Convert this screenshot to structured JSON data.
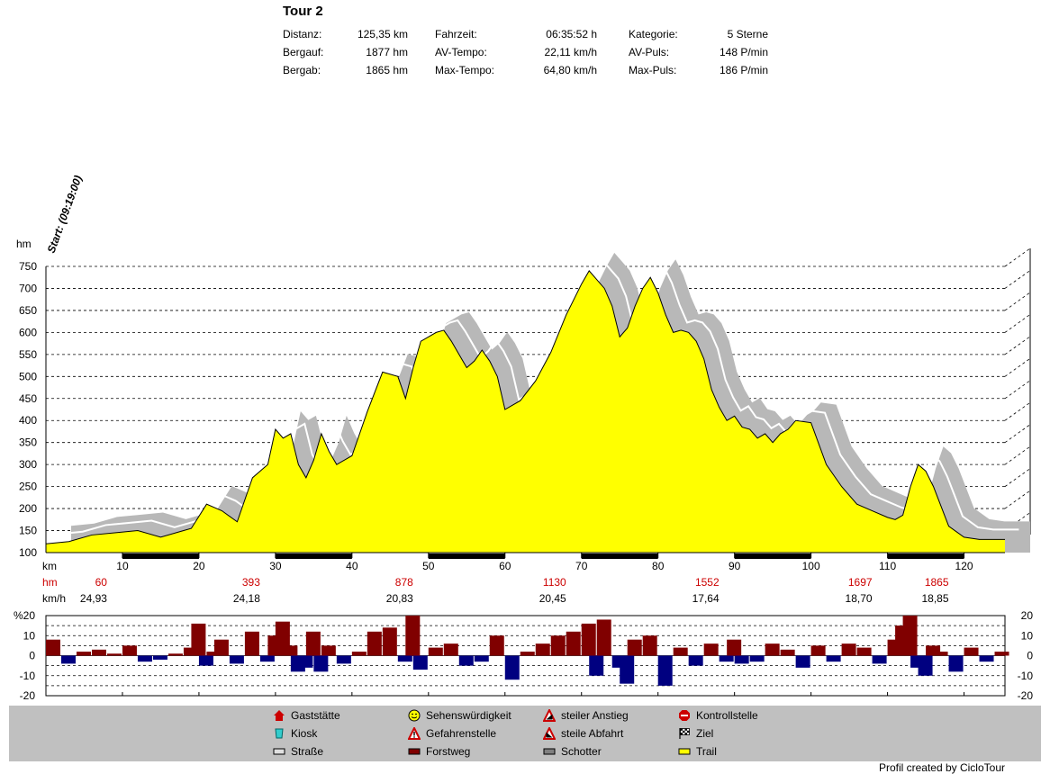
{
  "header": {
    "title": "Tour 2",
    "stats": [
      {
        "label": "Distanz:",
        "value": "125,35 km"
      },
      {
        "label": "Bergauf:",
        "value": "1877 hm"
      },
      {
        "label": "Bergab:",
        "value": "1865 hm"
      },
      {
        "label": "Fahrzeit:",
        "value": "06:35:52 h"
      },
      {
        "label": "AV-Tempo:",
        "value": "22,11 km/h"
      },
      {
        "label": "Max-Tempo:",
        "value": "64,80 km/h"
      },
      {
        "label": "Kategorie:",
        "value": "5 Sterne"
      },
      {
        "label": "AV-Puls:",
        "value": "148 P/min"
      },
      {
        "label": "Max-Puls:",
        "value": "186 P/min"
      }
    ]
  },
  "colors": {
    "trail": "#ffff00",
    "shadow": "#b8b8b8",
    "red": "#cc0000",
    "forstweg": "#800000",
    "downhill": "#000080"
  },
  "chart_data": [
    {
      "type": "area",
      "start_label": "Start: (09:19:00)",
      "ylabel": "hm",
      "xlabel": "km",
      "ylim": [
        100,
        750
      ],
      "yticks": [
        100,
        150,
        200,
        250,
        300,
        350,
        400,
        450,
        500,
        550,
        600,
        650,
        700,
        750
      ],
      "xlim": [
        0,
        125.35
      ],
      "xticks": [
        10,
        20,
        30,
        40,
        50,
        60,
        70,
        80,
        90,
        100,
        110,
        120
      ],
      "grid": true,
      "x": [
        0,
        3,
        6,
        9,
        12,
        15,
        18,
        19,
        21,
        23,
        25,
        27,
        29,
        30,
        31,
        32,
        33,
        34,
        35,
        36,
        37,
        38,
        40,
        42,
        44,
        46,
        47,
        48,
        49,
        50,
        51,
        52,
        53,
        54,
        55,
        56,
        57,
        58,
        59,
        60,
        62,
        64,
        66,
        68,
        70,
        71,
        72,
        73,
        74,
        75,
        76,
        77,
        78,
        79,
        80,
        81,
        82,
        83,
        84,
        85,
        86,
        87,
        88,
        89,
        90,
        91,
        92,
        93,
        94,
        95,
        96,
        97,
        98,
        100,
        102,
        104,
        106,
        108,
        110,
        111,
        112,
        113,
        114,
        115,
        116,
        118,
        120,
        122,
        125.35
      ],
      "y": [
        120,
        125,
        140,
        145,
        150,
        135,
        150,
        155,
        210,
        195,
        170,
        270,
        300,
        380,
        360,
        370,
        300,
        270,
        310,
        370,
        330,
        300,
        320,
        420,
        510,
        500,
        450,
        520,
        580,
        590,
        600,
        605,
        580,
        550,
        520,
        535,
        560,
        535,
        500,
        425,
        445,
        490,
        555,
        640,
        710,
        740,
        720,
        700,
        660,
        590,
        610,
        660,
        700,
        725,
        690,
        640,
        600,
        605,
        600,
        580,
        540,
        470,
        430,
        400,
        410,
        385,
        380,
        360,
        370,
        350,
        370,
        380,
        400,
        395,
        300,
        250,
        210,
        195,
        180,
        175,
        185,
        250,
        300,
        285,
        250,
        160,
        135,
        130,
        130
      ]
    },
    {
      "type": "bar",
      "ylabel": "%",
      "ylim": [
        -20,
        20
      ],
      "yticks": [
        -20,
        -10,
        0,
        10,
        20
      ],
      "xlim": [
        0,
        125.35
      ],
      "x": [
        0,
        2,
        4,
        6,
        8,
        10,
        12,
        14,
        16,
        18,
        19,
        20,
        21,
        22,
        24,
        26,
        28,
        29,
        30,
        31,
        32,
        33,
        34,
        35,
        36,
        38,
        40,
        42,
        44,
        46,
        47,
        48,
        50,
        52,
        54,
        56,
        58,
        60,
        62,
        64,
        66,
        68,
        70,
        71,
        72,
        74,
        75,
        76,
        78,
        80,
        82,
        84,
        86,
        88,
        89,
        90,
        92,
        94,
        96,
        98,
        100,
        102,
        104,
        106,
        108,
        110,
        111,
        112,
        113,
        114,
        115,
        116,
        118,
        120,
        122,
        124
      ],
      "values": [
        8,
        -4,
        2,
        3,
        1,
        5,
        -3,
        -2,
        1,
        4,
        16,
        -5,
        2,
        8,
        -4,
        12,
        -3,
        10,
        17,
        5,
        -8,
        -6,
        12,
        -8,
        5,
        -4,
        2,
        12,
        14,
        -3,
        20,
        -7,
        4,
        6,
        -5,
        -3,
        10,
        -12,
        2,
        6,
        10,
        12,
        16,
        -10,
        18,
        -6,
        -14,
        8,
        10,
        -15,
        4,
        -5,
        6,
        -3,
        8,
        -4,
        -3,
        6,
        3,
        -6,
        5,
        -3,
        6,
        4,
        -4,
        8,
        15,
        20,
        -6,
        -10,
        5,
        2,
        -8,
        4,
        -3,
        2
      ],
      "right_ticks": [
        20,
        10,
        0,
        -10,
        -20
      ]
    }
  ],
  "axis_rows": {
    "km_label": "km",
    "hm_label": "hm",
    "kmh_label": "km/h",
    "hm_values": [
      {
        "km": 10,
        "label": "60"
      },
      {
        "km": 30,
        "label": "393"
      },
      {
        "km": 50,
        "label": "878"
      },
      {
        "km": 70,
        "label": "1130"
      },
      {
        "km": 90,
        "label": "1552"
      },
      {
        "km": 110,
        "label": "1697"
      },
      {
        "km": 120,
        "label": "1865"
      }
    ],
    "kmh_values": [
      {
        "km": 10,
        "label": "24,93"
      },
      {
        "km": 30,
        "label": "24,18"
      },
      {
        "km": 50,
        "label": "20,83"
      },
      {
        "km": 70,
        "label": "20,45"
      },
      {
        "km": 90,
        "label": "17,64"
      },
      {
        "km": 110,
        "label": "18,70"
      },
      {
        "km": 120,
        "label": "18,85"
      }
    ]
  },
  "legend": [
    {
      "label": "Gaststätte",
      "icon": "house-icon"
    },
    {
      "label": "Kiosk",
      "icon": "cup-icon"
    },
    {
      "label": "Straße",
      "icon": "road-swatch-icon"
    },
    {
      "label": "Sehenswürdigkeit",
      "icon": "smiley-icon"
    },
    {
      "label": "Gefahrenstelle",
      "icon": "warning-icon"
    },
    {
      "label": "Forstweg",
      "icon": "forest-road-swatch-icon"
    },
    {
      "label": "steiler Anstieg",
      "icon": "steep-climb-icon"
    },
    {
      "label": "steile Abfahrt",
      "icon": "steep-descent-icon"
    },
    {
      "label": "Schotter",
      "icon": "gravel-swatch-icon"
    },
    {
      "label": "Kontrollstelle",
      "icon": "stop-icon"
    },
    {
      "label": "Ziel",
      "icon": "finish-flag-icon"
    },
    {
      "label": "Trail",
      "icon": "trail-swatch-icon"
    }
  ],
  "credit": "Profil created by CicloTour"
}
